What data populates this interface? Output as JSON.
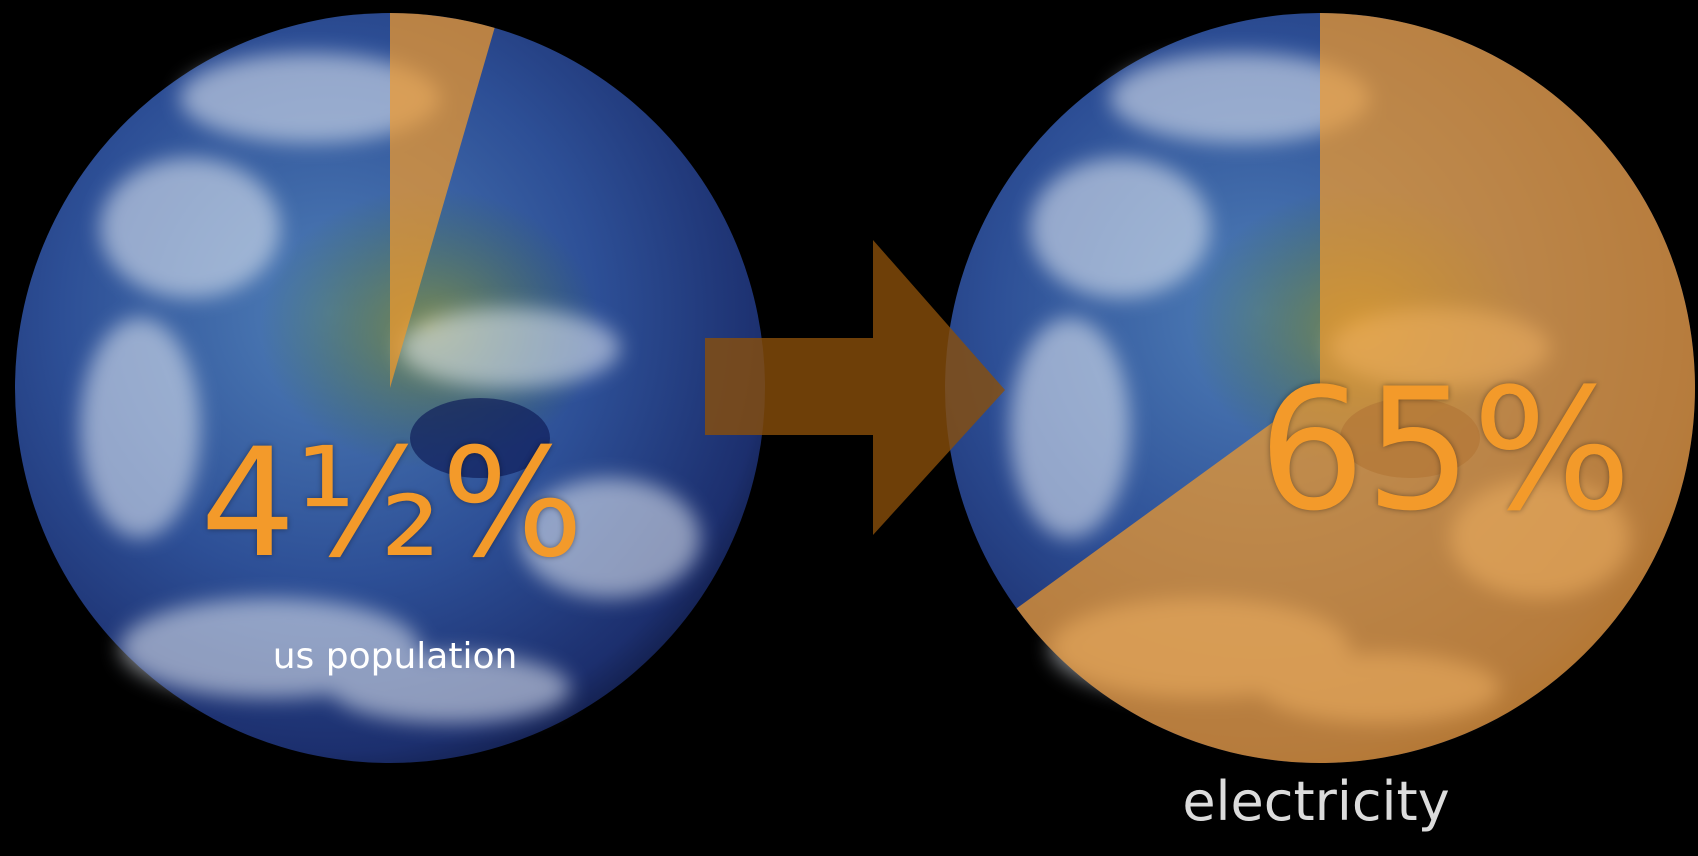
{
  "chart_data": [
    {
      "type": "pie",
      "categories": [
        "us population"
      ],
      "values": [
        4.5
      ],
      "value_labels": [
        "4½%"
      ],
      "color": "#f39a2a"
    },
    {
      "type": "pie",
      "categories": [
        "electricity"
      ],
      "values": [
        65
      ],
      "value_labels": [
        "65%"
      ],
      "color": "#f39a2a"
    }
  ]
}
